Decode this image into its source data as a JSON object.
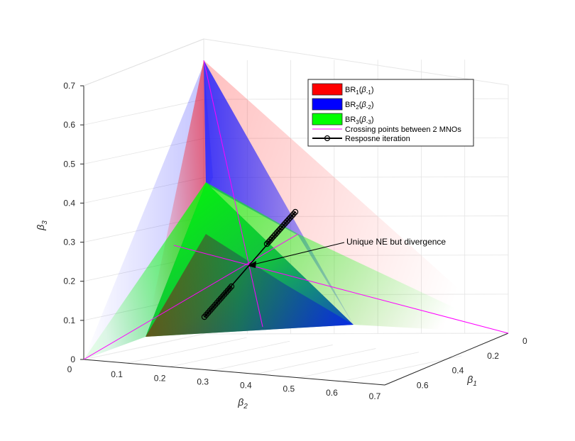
{
  "chart_data": {
    "type": "surface3d",
    "x_axis": {
      "label": "β1",
      "ticks": [
        "0",
        "0.2",
        "0.4",
        "0.6"
      ],
      "range": [
        0,
        0.7
      ]
    },
    "y_axis": {
      "label": "β2",
      "ticks": [
        "0",
        "0.1",
        "0.2",
        "0.3",
        "0.4",
        "0.5",
        "0.6",
        "0.7"
      ],
      "range": [
        0,
        0.7
      ]
    },
    "z_axis": {
      "label": "β3",
      "ticks": [
        "0",
        "0.1",
        "0.2",
        "0.3",
        "0.4",
        "0.5",
        "0.6",
        "0.7"
      ],
      "range": [
        0,
        0.7
      ]
    },
    "grid": true,
    "legend": {
      "placement": "top-right",
      "entries": [
        {
          "key": "br1",
          "label": "BR1(β-1)",
          "base": "BR",
          "sub": "1",
          "arg": "β",
          "argsub": "-1",
          "color": "#ff0000",
          "kind": "patch"
        },
        {
          "key": "br2",
          "label": "BR2(β-2)",
          "base": "BR",
          "sub": "2",
          "arg": "β",
          "argsub": "-2",
          "color": "#0000ff",
          "kind": "patch"
        },
        {
          "key": "br3",
          "label": "BR3(β-3)",
          "base": "BR",
          "sub": "3",
          "arg": "β",
          "argsub": "-3",
          "color": "#00ff00",
          "kind": "patch"
        },
        {
          "key": "cross",
          "label": "Crossing points between 2 MNOs",
          "color": "#ff00ff",
          "kind": "line"
        },
        {
          "key": "iter",
          "label": "Resposne iteration",
          "color": "#000000",
          "kind": "line-marker"
        }
      ]
    },
    "annotation": {
      "text": "Unique NE but divergence",
      "target": [
        0.24,
        0.24,
        0.24
      ]
    },
    "ne_point": [
      0.24,
      0.24,
      0.24
    ],
    "response_iteration": {
      "lower_segment": {
        "from": [
          0.33,
          0.32,
          0.11
        ],
        "to": [
          0.27,
          0.27,
          0.18
        ],
        "count": 16
      },
      "upper_segment": {
        "from": [
          0.2,
          0.2,
          0.3
        ],
        "to": [
          0.16,
          0.15,
          0.38
        ],
        "count": 18
      }
    }
  }
}
